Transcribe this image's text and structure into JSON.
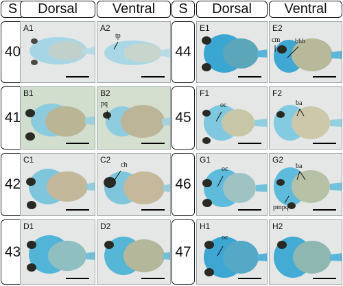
{
  "figure": {
    "stage_header": "S",
    "column_headers": [
      "Dorsal",
      "Ventral",
      "Dorsal",
      "Ventral"
    ],
    "stages_left": [
      "40",
      "41",
      "42",
      "43"
    ],
    "stages_right": [
      "44",
      "45",
      "46",
      "47"
    ],
    "panels": {
      "A1": {
        "label": "A1",
        "annotations": []
      },
      "A2": {
        "label": "A2",
        "annotations": [
          "tp"
        ]
      },
      "B1": {
        "label": "B1",
        "annotations": []
      },
      "B2": {
        "label": "B2",
        "annotations": [
          "pq"
        ]
      },
      "C1": {
        "label": "C1",
        "annotations": []
      },
      "C2": {
        "label": "C2",
        "annotations": [
          "ch"
        ]
      },
      "D1": {
        "label": "D1",
        "annotations": []
      },
      "D2": {
        "label": "D2",
        "annotations": []
      },
      "E1": {
        "label": "E1",
        "annotations": []
      },
      "E2": {
        "label": "E2",
        "annotations": [
          "cm",
          "bhb"
        ]
      },
      "F1": {
        "label": "F1",
        "annotations": [
          "oc"
        ]
      },
      "F2": {
        "label": "F2",
        "annotations": [
          "ba"
        ]
      },
      "G1": {
        "label": "G1",
        "annotations": [
          "oc"
        ]
      },
      "G2": {
        "label": "G2",
        "annotations": [
          "ba",
          "pmpq"
        ]
      },
      "H1": {
        "label": "H1",
        "annotations": [
          "oc"
        ]
      },
      "H2": {
        "label": "H2",
        "annotations": []
      }
    },
    "colors": {
      "stain_blue": "#5bbbd8",
      "stain_deep": "#2f8fc4",
      "yolk": "#c8b48a",
      "eye": "#2a2a24",
      "bg_light": "#e6e9e8",
      "bg_green": "#cfdccb"
    }
  }
}
